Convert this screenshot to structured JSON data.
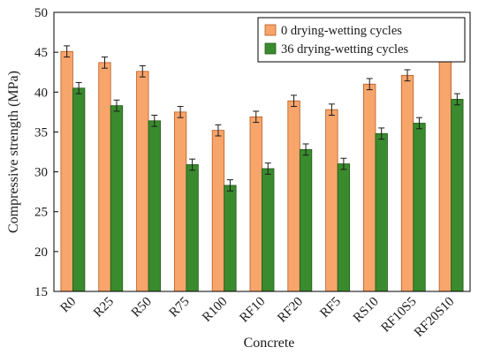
{
  "chart_data": {
    "type": "bar",
    "categories": [
      "R0",
      "R25",
      "R50",
      "R75",
      "R100",
      "RF10",
      "RF20",
      "RF5",
      "RS10",
      "RF10S5",
      "RF20S10"
    ],
    "series": [
      {
        "name": "0  drying-wetting cycles",
        "values": [
          45.1,
          43.7,
          42.6,
          37.5,
          35.2,
          36.9,
          38.9,
          37.8,
          41.0,
          42.1,
          44.5
        ],
        "errors": [
          0.7,
          0.7,
          0.7,
          0.7,
          0.7,
          0.7,
          0.7,
          0.7,
          0.7,
          0.7,
          0.7
        ],
        "color": "#f8a56c",
        "edge": "#b85a1f"
      },
      {
        "name": "36  drying-wetting cycles",
        "values": [
          40.5,
          38.3,
          36.4,
          30.9,
          28.3,
          30.4,
          32.8,
          31.0,
          34.8,
          36.1,
          39.1
        ],
        "errors": [
          0.7,
          0.7,
          0.7,
          0.7,
          0.7,
          0.7,
          0.7,
          0.7,
          0.7,
          0.7,
          0.7
        ],
        "color": "#3a8a2e",
        "edge": "#205a18"
      }
    ],
    "xlabel": "Concrete",
    "ylabel": "Compressive strength (MPa)",
    "ylim": [
      15,
      50
    ],
    "yticks": [
      15,
      20,
      25,
      30,
      35,
      40,
      45,
      50
    ],
    "grid": false,
    "legend_position": "top-right",
    "has_error_bars": true
  }
}
